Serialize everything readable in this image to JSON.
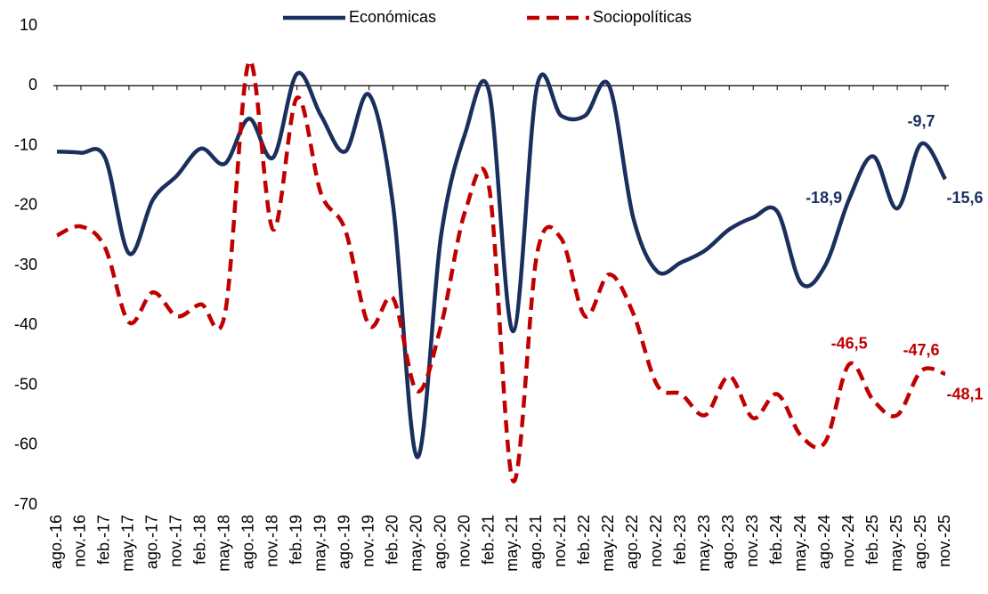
{
  "chart_data": {
    "type": "line",
    "categories": [
      "ago.-16",
      "nov.-16",
      "feb.-17",
      "may.-17",
      "ago.-17",
      "nov.-17",
      "feb.-18",
      "may.-18",
      "ago.-18",
      "nov.-18",
      "feb.-19",
      "may.-19",
      "ago.-19",
      "nov.-19",
      "feb.-20",
      "may.-20",
      "ago.-20",
      "nov.-20",
      "feb.-21",
      "may.-21",
      "ago.-21",
      "nov.-21",
      "feb.-22",
      "may.-22",
      "ago.-22",
      "nov.-22",
      "feb.-23",
      "may.-23",
      "ago.-23",
      "nov.-23",
      "feb.-24",
      "may.-24",
      "ago.-24",
      "nov.-24",
      "feb.-25",
      "may.-25",
      "ago.-25",
      "nov.-25"
    ],
    "series": [
      {
        "name": "Económicas",
        "color": "#1b2f5e",
        "dash": false,
        "values": [
          -11,
          -11.2,
          -12,
          -28,
          -19,
          -15,
          -10.5,
          -13,
          -5.5,
          -12,
          2,
          -5,
          -11,
          -1.5,
          -20,
          -62,
          -25,
          -8,
          -1,
          -41,
          0,
          -5,
          -5,
          0,
          -22,
          -31,
          -29.5,
          -27.5,
          -24,
          -22,
          -21,
          -33,
          -30,
          -18.9,
          -11.8,
          -20.5,
          -9.7,
          -15.6
        ],
        "value_labels": [
          null,
          null,
          null,
          null,
          null,
          null,
          null,
          null,
          null,
          null,
          null,
          null,
          null,
          null,
          null,
          null,
          null,
          null,
          null,
          null,
          null,
          null,
          null,
          null,
          null,
          null,
          null,
          null,
          null,
          null,
          null,
          null,
          null,
          "-18,9",
          null,
          null,
          "-9,7",
          "-15,6"
        ]
      },
      {
        "name": "Sociopolíticas",
        "color": "#c00000",
        "dash": true,
        "values": [
          -25,
          -23.5,
          -27,
          -39.5,
          -34.5,
          -38.5,
          -36.5,
          -38,
          4,
          -24,
          -2,
          -18,
          -24,
          -40,
          -35.5,
          -51,
          -40,
          -21,
          -17,
          -66,
          -28,
          -25.5,
          -38.5,
          -31.5,
          -38,
          -50,
          -51.5,
          -55,
          -48.5,
          -55.5,
          -51.5,
          -58.5,
          -59.5,
          -46.5,
          -52.5,
          -55,
          -47.6,
          -48.1
        ],
        "value_labels": [
          null,
          null,
          null,
          null,
          null,
          null,
          null,
          null,
          null,
          null,
          null,
          null,
          null,
          null,
          null,
          null,
          null,
          null,
          null,
          null,
          null,
          null,
          null,
          null,
          null,
          null,
          null,
          null,
          null,
          null,
          null,
          null,
          null,
          "-46,5",
          null,
          null,
          "-47,6",
          "-48,1"
        ]
      }
    ],
    "ylim": [
      -70,
      10
    ],
    "yticks": [
      -70,
      -60,
      -50,
      -40,
      -30,
      -20,
      -10,
      0,
      10
    ],
    "grid": false,
    "legend": "top"
  }
}
